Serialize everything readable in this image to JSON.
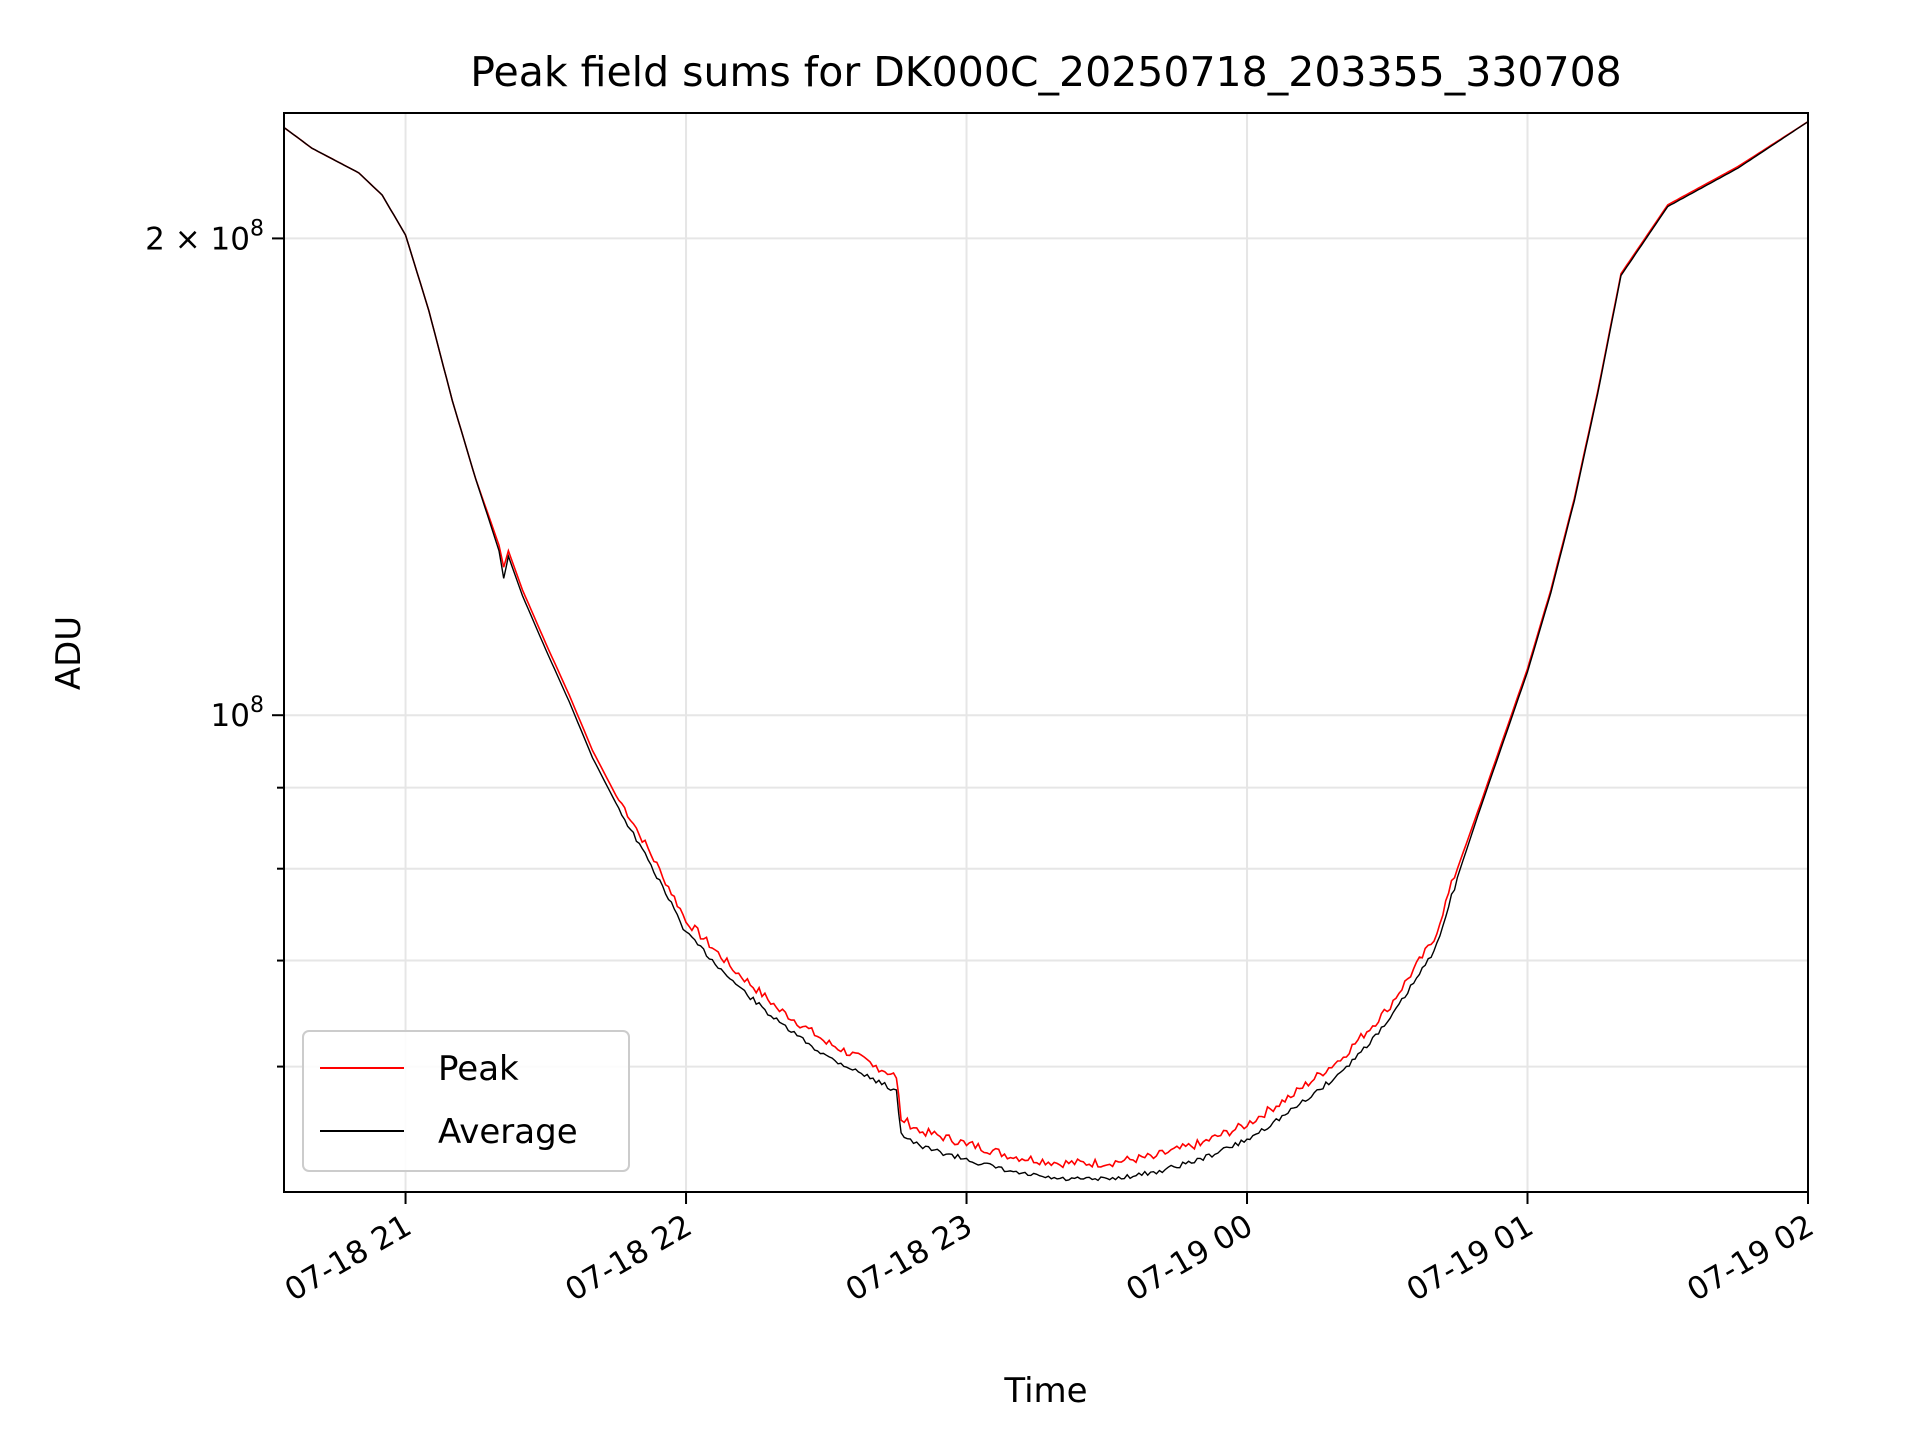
{
  "chart_data": {
    "type": "line",
    "title": "Peak field sums for DK000C_20250718_203355_330708",
    "xlabel": "Time",
    "ylabel": "ADU",
    "y_scale": "log",
    "grid": true,
    "legend_position": "lower-left",
    "xlim": [
      "2025-07-18 20:34",
      "2025-07-19 02:00"
    ],
    "ylim": [
      50000000,
      240000000
    ],
    "x_ticks": [
      {
        "value": "2025-07-18 21:00",
        "label": "07-18 21"
      },
      {
        "value": "2025-07-18 22:00",
        "label": "07-18 22"
      },
      {
        "value": "2025-07-18 23:00",
        "label": "07-18 23"
      },
      {
        "value": "2025-07-19 00:00",
        "label": "07-19 00"
      },
      {
        "value": "2025-07-19 01:00",
        "label": "07-19 01"
      },
      {
        "value": "2025-07-19 02:00",
        "label": "07-19 02"
      }
    ],
    "y_ticks": [
      {
        "value": 200000000,
        "mantissa": "2",
        "times": " × ",
        "base": "10",
        "exponent": "8"
      },
      {
        "value": 100000000,
        "mantissa": "",
        "times": "",
        "base": "10",
        "exponent": "8"
      }
    ],
    "y_minor_ticks": [
      60000000,
      70000000,
      80000000,
      90000000
    ],
    "series": [
      {
        "name": "Peak",
        "color": "#ff0000",
        "x": [
          "2025-07-18 20:34",
          "2025-07-18 20:40",
          "2025-07-18 20:50",
          "2025-07-18 20:55",
          "2025-07-18 21:00",
          "2025-07-18 21:05",
          "2025-07-18 21:10",
          "2025-07-18 21:15",
          "2025-07-18 21:20",
          "2025-07-18 21:21",
          "2025-07-18 21:22",
          "2025-07-18 21:25",
          "2025-07-18 21:30",
          "2025-07-18 21:35",
          "2025-07-18 21:40",
          "2025-07-18 21:45",
          "2025-07-18 21:50",
          "2025-07-18 21:55",
          "2025-07-18 22:00",
          "2025-07-18 22:10",
          "2025-07-18 22:20",
          "2025-07-18 22:30",
          "2025-07-18 22:40",
          "2025-07-18 22:45",
          "2025-07-18 22:46",
          "2025-07-18 22:50",
          "2025-07-18 23:00",
          "2025-07-18 23:10",
          "2025-07-18 23:20",
          "2025-07-18 23:30",
          "2025-07-18 23:40",
          "2025-07-18 23:50",
          "2025-07-19 00:00",
          "2025-07-19 00:10",
          "2025-07-19 00:20",
          "2025-07-19 00:30",
          "2025-07-19 00:40",
          "2025-07-19 00:45",
          "2025-07-19 00:50",
          "2025-07-19 01:00",
          "2025-07-19 01:05",
          "2025-07-19 01:10",
          "2025-07-19 01:15",
          "2025-07-19 01:20",
          "2025-07-19 01:30",
          "2025-07-19 01:45",
          "2025-07-19 02:00"
        ],
        "values": [
          235000000,
          228000000,
          220000000,
          213000000,
          201000000,
          180000000,
          158000000,
          141000000,
          128000000,
          124000000,
          127000000,
          120000000,
          111000000,
          103000000,
          95000000,
          89000000,
          84000000,
          79000000,
          74000000,
          69000000,
          65000000,
          62000000,
          60000000,
          59000000,
          55500000,
          54500000,
          53500000,
          52500000,
          52000000,
          52000000,
          52500000,
          53500000,
          55000000,
          57500000,
          60500000,
          65000000,
          72000000,
          80000000,
          88000000,
          107000000,
          120000000,
          137000000,
          160000000,
          190000000,
          210000000,
          222000000,
          237000000
        ]
      },
      {
        "name": "Average",
        "color": "#000000",
        "x": [
          "2025-07-18 20:34",
          "2025-07-18 20:40",
          "2025-07-18 20:50",
          "2025-07-18 20:55",
          "2025-07-18 21:00",
          "2025-07-18 21:05",
          "2025-07-18 21:10",
          "2025-07-18 21:15",
          "2025-07-18 21:20",
          "2025-07-18 21:21",
          "2025-07-18 21:22",
          "2025-07-18 21:25",
          "2025-07-18 21:30",
          "2025-07-18 21:35",
          "2025-07-18 21:40",
          "2025-07-18 21:45",
          "2025-07-18 21:50",
          "2025-07-18 21:55",
          "2025-07-18 22:00",
          "2025-07-18 22:10",
          "2025-07-18 22:20",
          "2025-07-18 22:30",
          "2025-07-18 22:40",
          "2025-07-18 22:45",
          "2025-07-18 22:46",
          "2025-07-18 22:50",
          "2025-07-18 23:00",
          "2025-07-18 23:10",
          "2025-07-18 23:20",
          "2025-07-18 23:30",
          "2025-07-18 23:40",
          "2025-07-18 23:50",
          "2025-07-19 00:00",
          "2025-07-19 00:10",
          "2025-07-19 00:20",
          "2025-07-19 00:30",
          "2025-07-19 00:40",
          "2025-07-19 00:45",
          "2025-07-19 00:50",
          "2025-07-19 01:00",
          "2025-07-19 01:05",
          "2025-07-19 01:10",
          "2025-07-19 01:15",
          "2025-07-19 01:20",
          "2025-07-19 01:30",
          "2025-07-19 01:45",
          "2025-07-19 02:00"
        ],
        "values": [
          235000000,
          228000000,
          220000000,
          213000000,
          201000000,
          180000000,
          158000000,
          141000000,
          127000000,
          122000000,
          126000000,
          119000000,
          110000000,
          102000000,
          94000000,
          88000000,
          83000000,
          78000000,
          73000000,
          68000000,
          64000000,
          61000000,
          59000000,
          58000000,
          54500000,
          53500000,
          52500000,
          51500000,
          51000000,
          51000000,
          51500000,
          52500000,
          54000000,
          56500000,
          59500000,
          64000000,
          71000000,
          79000000,
          87500000,
          106500000,
          119500000,
          136500000,
          159500000,
          189500000,
          209500000,
          221500000,
          237000000
        ]
      }
    ]
  }
}
